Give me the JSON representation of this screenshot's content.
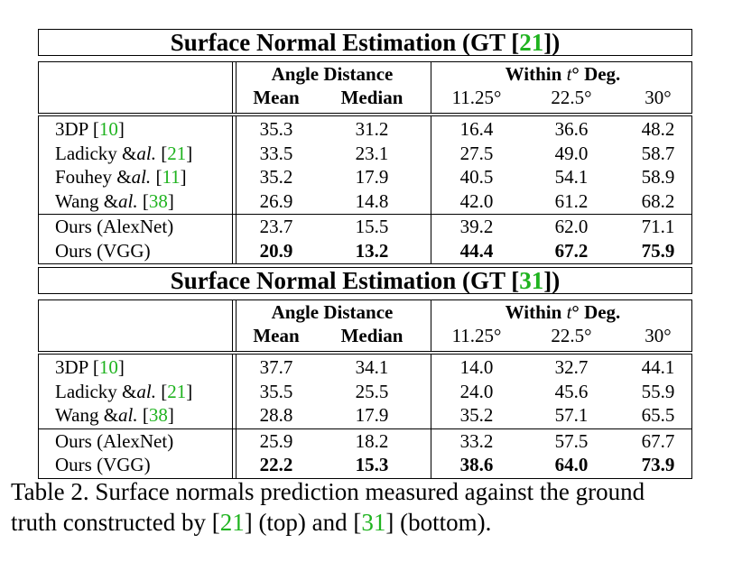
{
  "tables": [
    {
      "title_pre": "Surface Normal Estimation (GT [",
      "title_ref": "21",
      "title_post": "])",
      "header": {
        "group1": "Angle Distance",
        "group2_pre": "Within ",
        "group2_t": "t",
        "group2_post": "° Deg.",
        "col_mean": "Mean",
        "col_median": "Median",
        "col_11": "11.25°",
        "col_22": "22.5°",
        "col_30": "30°"
      },
      "rows": [
        {
          "name_pre": "3DP [",
          "name_it": "",
          "name_mid": "",
          "ref": "10",
          "name_post": "]",
          "values": [
            "35.3",
            "31.2",
            "16.4",
            "36.6",
            "48.2"
          ],
          "bold": false
        },
        {
          "name_pre": "Ladicky &",
          "name_it": "al.",
          "name_mid": " [",
          "ref": "21",
          "name_post": "]",
          "values": [
            "33.5",
            "23.1",
            "27.5",
            "49.0",
            "58.7"
          ],
          "bold": false
        },
        {
          "name_pre": "Fouhey &",
          "name_it": "al.",
          "name_mid": " [",
          "ref": "11",
          "name_post": "]",
          "values": [
            "35.2",
            "17.9",
            "40.5",
            "54.1",
            "58.9"
          ],
          "bold": false
        },
        {
          "name_pre": "Wang &",
          "name_it": "al.",
          "name_mid": " [",
          "ref": "38",
          "name_post": "]",
          "values": [
            "26.9",
            "14.8",
            "42.0",
            "61.2",
            "68.2"
          ],
          "bold": false
        },
        {
          "name_pre": "Ours (AlexNet)",
          "name_it": "",
          "name_mid": "",
          "ref": "",
          "name_post": "",
          "values": [
            "23.7",
            "15.5",
            "39.2",
            "62.0",
            "71.1"
          ],
          "bold": false
        },
        {
          "name_pre": "Ours (VGG)",
          "name_it": "",
          "name_mid": "",
          "ref": "",
          "name_post": "",
          "values": [
            "20.9",
            "13.2",
            "44.4",
            "67.2",
            "75.9"
          ],
          "bold": true
        }
      ]
    },
    {
      "title_pre": "Surface Normal Estimation (GT [",
      "title_ref": "31",
      "title_post": "])",
      "header": {
        "group1": "Angle Distance",
        "group2_pre": "Within ",
        "group2_t": "t",
        "group2_post": "° Deg.",
        "col_mean": "Mean",
        "col_median": "Median",
        "col_11": "11.25°",
        "col_22": "22.5°",
        "col_30": "30°"
      },
      "rows": [
        {
          "name_pre": "3DP [",
          "name_it": "",
          "name_mid": "",
          "ref": "10",
          "name_post": "]",
          "values": [
            "37.7",
            "34.1",
            "14.0",
            "32.7",
            "44.1"
          ],
          "bold": false
        },
        {
          "name_pre": "Ladicky &",
          "name_it": "al.",
          "name_mid": " [",
          "ref": "21",
          "name_post": "]",
          "values": [
            "35.5",
            "25.5",
            "24.0",
            "45.6",
            "55.9"
          ],
          "bold": false
        },
        {
          "name_pre": "Wang &",
          "name_it": "al.",
          "name_mid": " [",
          "ref": "38",
          "name_post": "]",
          "values": [
            "28.8",
            "17.9",
            "35.2",
            "57.1",
            "65.5"
          ],
          "bold": false
        },
        {
          "name_pre": "Ours (AlexNet)",
          "name_it": "",
          "name_mid": "",
          "ref": "",
          "name_post": "",
          "values": [
            "25.9",
            "18.2",
            "33.2",
            "57.5",
            "67.7"
          ],
          "bold": false
        },
        {
          "name_pre": "Ours (VGG)",
          "name_it": "",
          "name_mid": "",
          "ref": "",
          "name_post": "",
          "values": [
            "22.2",
            "15.3",
            "38.6",
            "64.0",
            "73.9"
          ],
          "bold": true
        }
      ]
    }
  ],
  "caption": {
    "line1": "Table 2. Surface normals prediction measured against the ground",
    "line2_pre": "truth constructed by [",
    "ref_a": "21",
    "line2_mid": "] (top) and [",
    "ref_b": "31",
    "line2_post": "] (bottom)."
  },
  "colors": {
    "ref_link": "#1fb31f",
    "text": "#000000"
  }
}
